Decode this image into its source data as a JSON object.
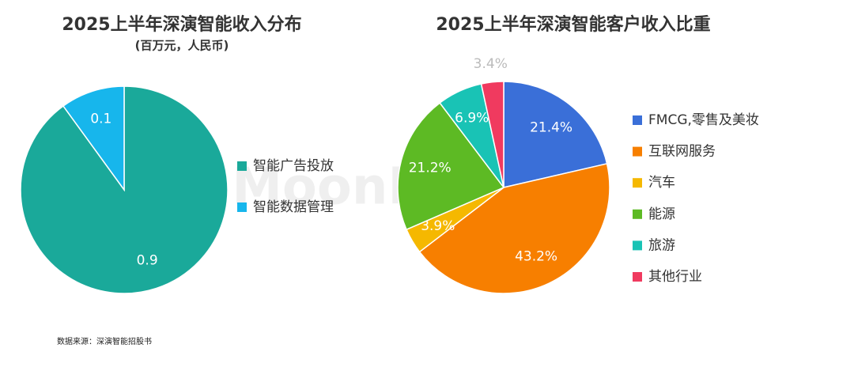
{
  "chart_data": [
    {
      "type": "pie",
      "title": "2025上半年深演智能收入分布",
      "subtitle": "(百万元，人民币)",
      "categories": [
        "智能广告投放",
        "智能数据管理"
      ],
      "values": [
        0.9,
        0.1
      ],
      "colors": [
        "#1aa99a",
        "#17b6ec"
      ]
    },
    {
      "type": "pie",
      "title": "2025上半年深演智能客户收入比重",
      "categories": [
        "FMCG,零售及美妆",
        "互联网服务",
        "汽车",
        "能源",
        "旅游",
        "其他行业"
      ],
      "values": [
        21.4,
        43.2,
        3.9,
        21.2,
        6.9,
        3.4
      ],
      "value_labels": [
        "21.4%",
        "43.2%",
        "3.9%",
        "21.2%",
        "6.9%",
        "3.4%"
      ],
      "colors": [
        "#3a6fd8",
        "#f77f00",
        "#f5b800",
        "#5dba24",
        "#19c3b5",
        "#f03a5f"
      ]
    }
  ],
  "watermark": "MoonFox",
  "source": "数据来源：深演智能招股书"
}
